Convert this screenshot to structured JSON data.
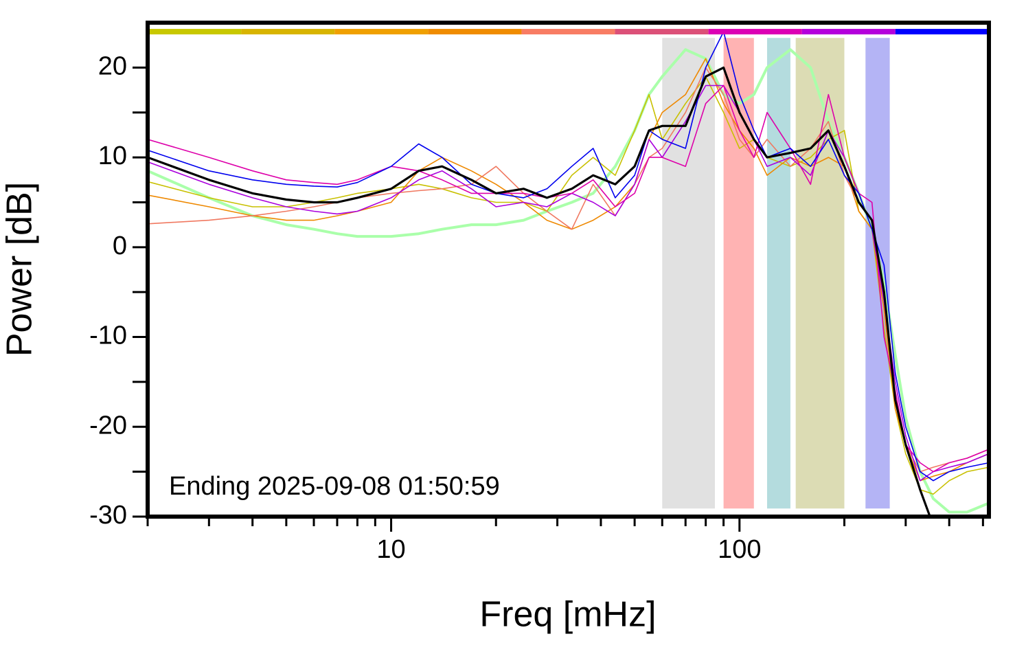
{
  "chart_data": {
    "type": "line",
    "x_label": "Freq [mHz]",
    "y_label": "Power [dB]",
    "annotation": "Ending 2025-09-08 01:50:59",
    "log_x": true,
    "xlim": [
      2,
      520
    ],
    "ylim": [
      -30,
      25
    ],
    "xticks": [
      10,
      100
    ],
    "x_minor_ticks": [
      2,
      3,
      4,
      5,
      6,
      7,
      8,
      9,
      20,
      30,
      40,
      50,
      60,
      70,
      80,
      90,
      200,
      300,
      400,
      500
    ],
    "yticks": [
      -30,
      -20,
      -10,
      0,
      10,
      20
    ],
    "y_minor_ticks": [
      -25,
      -15,
      -5,
      5,
      15
    ],
    "bands": [
      {
        "x0": 60,
        "x1": 85,
        "color": "#e1e1e1"
      },
      {
        "x0": 90,
        "x1": 110,
        "color": "#ffb3b3"
      },
      {
        "x0": 120,
        "x1": 140,
        "color": "#b4dcde"
      },
      {
        "x0": 145,
        "x1": 200,
        "color": "#dcdcb4"
      },
      {
        "x0": 230,
        "x1": 270,
        "color": "#b4b4f5"
      }
    ],
    "band_ylim": [
      -29.1,
      23.3
    ],
    "color_bar_level": 24,
    "color_bar": [
      "#c8c800",
      "#d8b400",
      "#f0a000",
      "#f08c00",
      "#f87c64",
      "#dc5078",
      "#dc00b4",
      "#b400dc",
      "#0000ff"
    ],
    "x": [
      2,
      3,
      4,
      5,
      6,
      7,
      8,
      10,
      12,
      14,
      17,
      20,
      24,
      28,
      33,
      38,
      44,
      50,
      55,
      60,
      70,
      80,
      90,
      100,
      110,
      120,
      140,
      160,
      180,
      200,
      220,
      240,
      260,
      280,
      300,
      330,
      360,
      400,
      450,
      520
    ],
    "series": [
      {
        "color": "#aaffaa",
        "width": 4,
        "values": [
          8.5,
          5.5,
          3.5,
          2.5,
          2,
          1.5,
          1.2,
          1.2,
          1.5,
          2,
          2.5,
          2.5,
          3,
          4,
          5,
          6,
          9,
          13,
          17,
          19,
          22,
          21,
          17,
          16,
          17,
          20,
          22,
          20,
          14,
          10,
          6,
          2,
          -4,
          -12,
          -19,
          -25,
          -28,
          -29.5,
          -29.5,
          -28.5
        ]
      },
      {
        "color": "#c8c000",
        "width": 1.6,
        "values": [
          7.3,
          5.5,
          4.5,
          4.5,
          5,
          5.5,
          6,
          6.5,
          7,
          6.5,
          5.5,
          5,
          5,
          4,
          8,
          10,
          8,
          13,
          17,
          12,
          16,
          19,
          15,
          11,
          12,
          10,
          9,
          10,
          12,
          13,
          4,
          2,
          -9,
          -18,
          -23,
          -27,
          -27.5,
          -26,
          -25,
          -24.5
        ]
      },
      {
        "color": "#ee8800",
        "width": 1.6,
        "values": [
          5.8,
          4.5,
          3.5,
          3,
          3,
          3.5,
          4,
          5,
          8.5,
          10,
          8.5,
          7,
          5,
          3,
          2,
          3,
          4.5,
          7,
          12,
          15,
          17,
          21,
          16,
          13,
          11,
          8,
          10,
          9,
          10,
          9,
          4,
          2,
          -7,
          -18,
          -22,
          -26,
          -25.5,
          -25,
          -24,
          -23
        ]
      },
      {
        "color": "#f07860",
        "width": 1.6,
        "values": [
          2.6,
          3,
          3.5,
          4,
          4.5,
          5,
          5.5,
          6,
          6.3,
          6.5,
          7,
          9,
          6,
          4,
          2,
          7,
          3.5,
          7,
          10,
          11,
          15,
          20,
          17,
          12,
          10,
          12,
          9,
          11,
          14,
          8,
          5,
          3,
          -6,
          -17,
          -22,
          -25,
          -24.5,
          -24,
          -23.5,
          -22.5
        ]
      },
      {
        "color": "#aa00dd",
        "width": 1.6,
        "values": [
          9.5,
          7,
          5.5,
          4.5,
          4,
          3.7,
          4,
          5.5,
          7.5,
          8.5,
          6.5,
          4.5,
          5,
          4.5,
          6,
          5,
          3.5,
          7,
          12,
          10,
          14,
          18,
          18,
          15,
          12,
          9,
          10,
          8,
          13,
          10,
          6,
          2,
          -6,
          -15,
          -21,
          -26,
          -25,
          -24.5,
          -24,
          -23
        ]
      },
      {
        "color": "#dd00aa",
        "width": 1.6,
        "values": [
          12,
          10,
          8.5,
          7.5,
          7.2,
          7,
          7.5,
          9,
          8.5,
          7.5,
          6,
          6,
          6,
          5.5,
          6,
          7.5,
          4.5,
          6,
          10,
          10,
          9,
          16,
          18,
          13,
          10,
          15,
          11,
          7,
          17,
          10,
          6,
          5,
          -10,
          -16,
          -22,
          -24,
          -25,
          -24,
          -23.5,
          -22.5
        ]
      },
      {
        "color": "#0000ee",
        "width": 1.6,
        "values": [
          10.8,
          8.5,
          7.5,
          7,
          6.8,
          6.7,
          7.2,
          9,
          11.5,
          10,
          7,
          6,
          5.5,
          6.5,
          9,
          11,
          5.5,
          8,
          13,
          12,
          11,
          20,
          24,
          17,
          13,
          10,
          11,
          9,
          12,
          8,
          6,
          2,
          -2,
          -14,
          -20,
          -25,
          -26,
          -25,
          -24.5,
          -24
        ]
      },
      {
        "color": "#000000",
        "width": 3.2,
        "values": [
          10,
          7.5,
          6,
          5.3,
          5,
          5,
          5.5,
          6.5,
          8.5,
          9,
          7.5,
          6,
          6.5,
          5.5,
          6.5,
          8,
          7,
          9,
          13,
          13.5,
          13.5,
          19,
          20,
          15,
          12,
          10,
          10.5,
          11,
          13,
          9,
          5,
          3,
          -5,
          -17,
          -22,
          -27,
          -31,
          null,
          null,
          null
        ]
      }
    ]
  }
}
